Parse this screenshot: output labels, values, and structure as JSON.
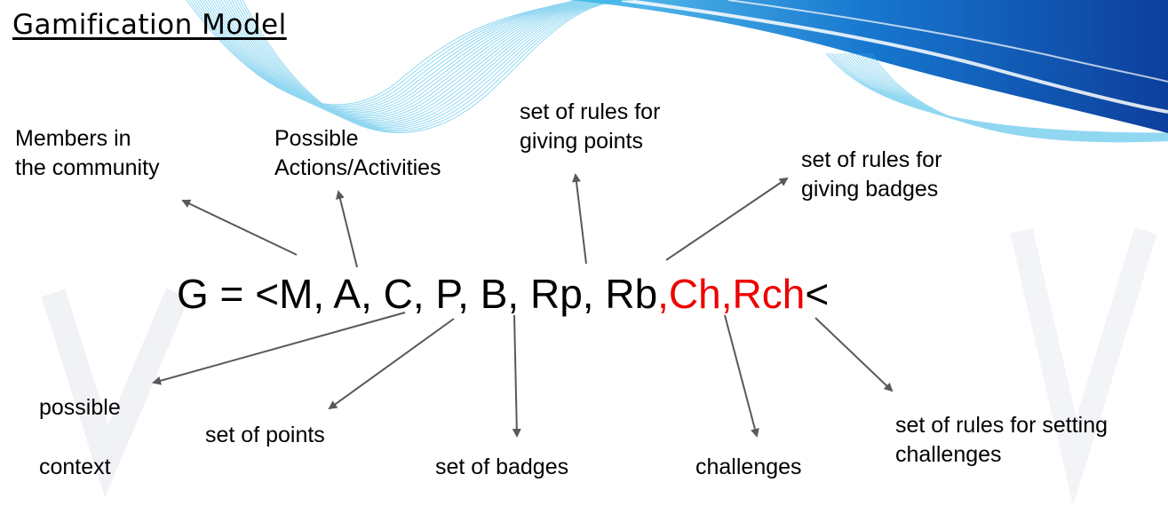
{
  "title": "Gamification Model",
  "colors": {
    "text": "#000000",
    "highlight": "#ee0000",
    "arrow": "#595959",
    "wave_light": "#35b6e6",
    "wave_dark": "#0d47a8"
  },
  "formula": {
    "prefix": "G = <M, A, C, P, B, Rp, Rb",
    "highlight": ",Ch,Rch",
    "suffix": "<"
  },
  "labels": {
    "members": [
      "Members in",
      "the community"
    ],
    "actions": [
      "Possible",
      "Actions/Activities"
    ],
    "rules_points": [
      "set of rules for",
      "giving points"
    ],
    "rules_badges": [
      "set of rules for",
      "giving badges"
    ],
    "context": [
      "possible",
      "context"
    ],
    "points": "set of points",
    "badges": "set of badges",
    "challenges": "challenges",
    "rules_challenges": [
      "set of rules for setting",
      "challenges"
    ]
  }
}
